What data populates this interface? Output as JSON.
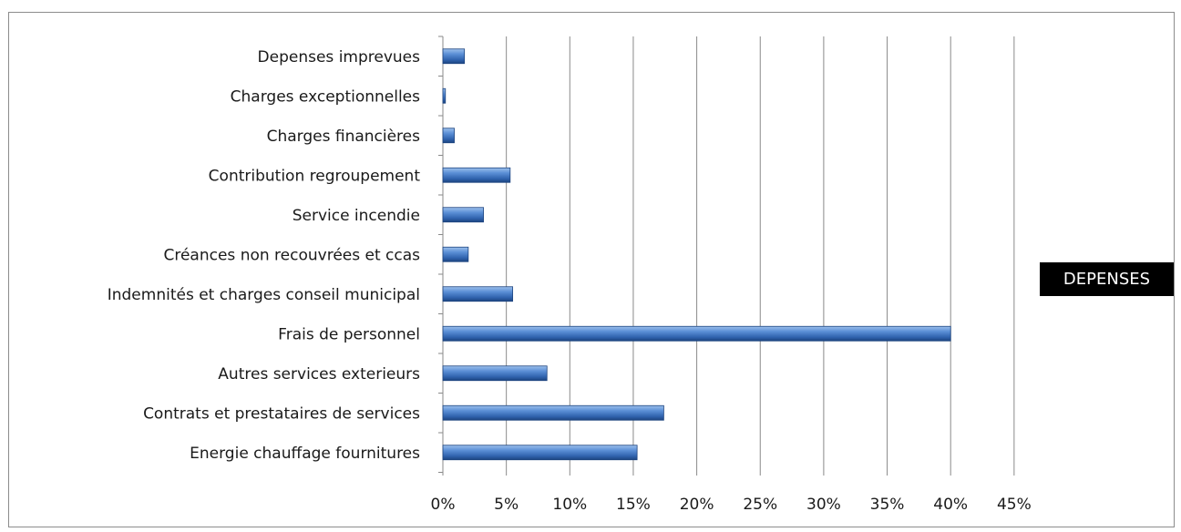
{
  "chart_data": {
    "type": "bar",
    "orientation": "horizontal",
    "categories": [
      "Depenses imprevues",
      "Charges exceptionnelles",
      "Charges financières",
      "Contribution regroupement",
      "Service incendie",
      "Créances non recouvrées et ccas",
      "Indemnités et charges conseil municipal",
      "Frais de personnel",
      "Autres services exterieurs",
      "Contrats et prestataires de services",
      "Energie chauffage fournitures"
    ],
    "series": [
      {
        "name": "DEPENSES",
        "values": [
          1.7,
          0.2,
          0.9,
          5.3,
          3.2,
          2.0,
          5.5,
          40.0,
          8.2,
          17.4,
          15.3
        ]
      }
    ],
    "xlim": [
      0,
      45
    ],
    "xticks": [
      "0%",
      "5%",
      "10%",
      "15%",
      "20%",
      "25%",
      "30%",
      "35%",
      "40%",
      "45%"
    ],
    "grid": "vertical",
    "legend_placement": "right",
    "bar_color": "#4a7fc8"
  }
}
